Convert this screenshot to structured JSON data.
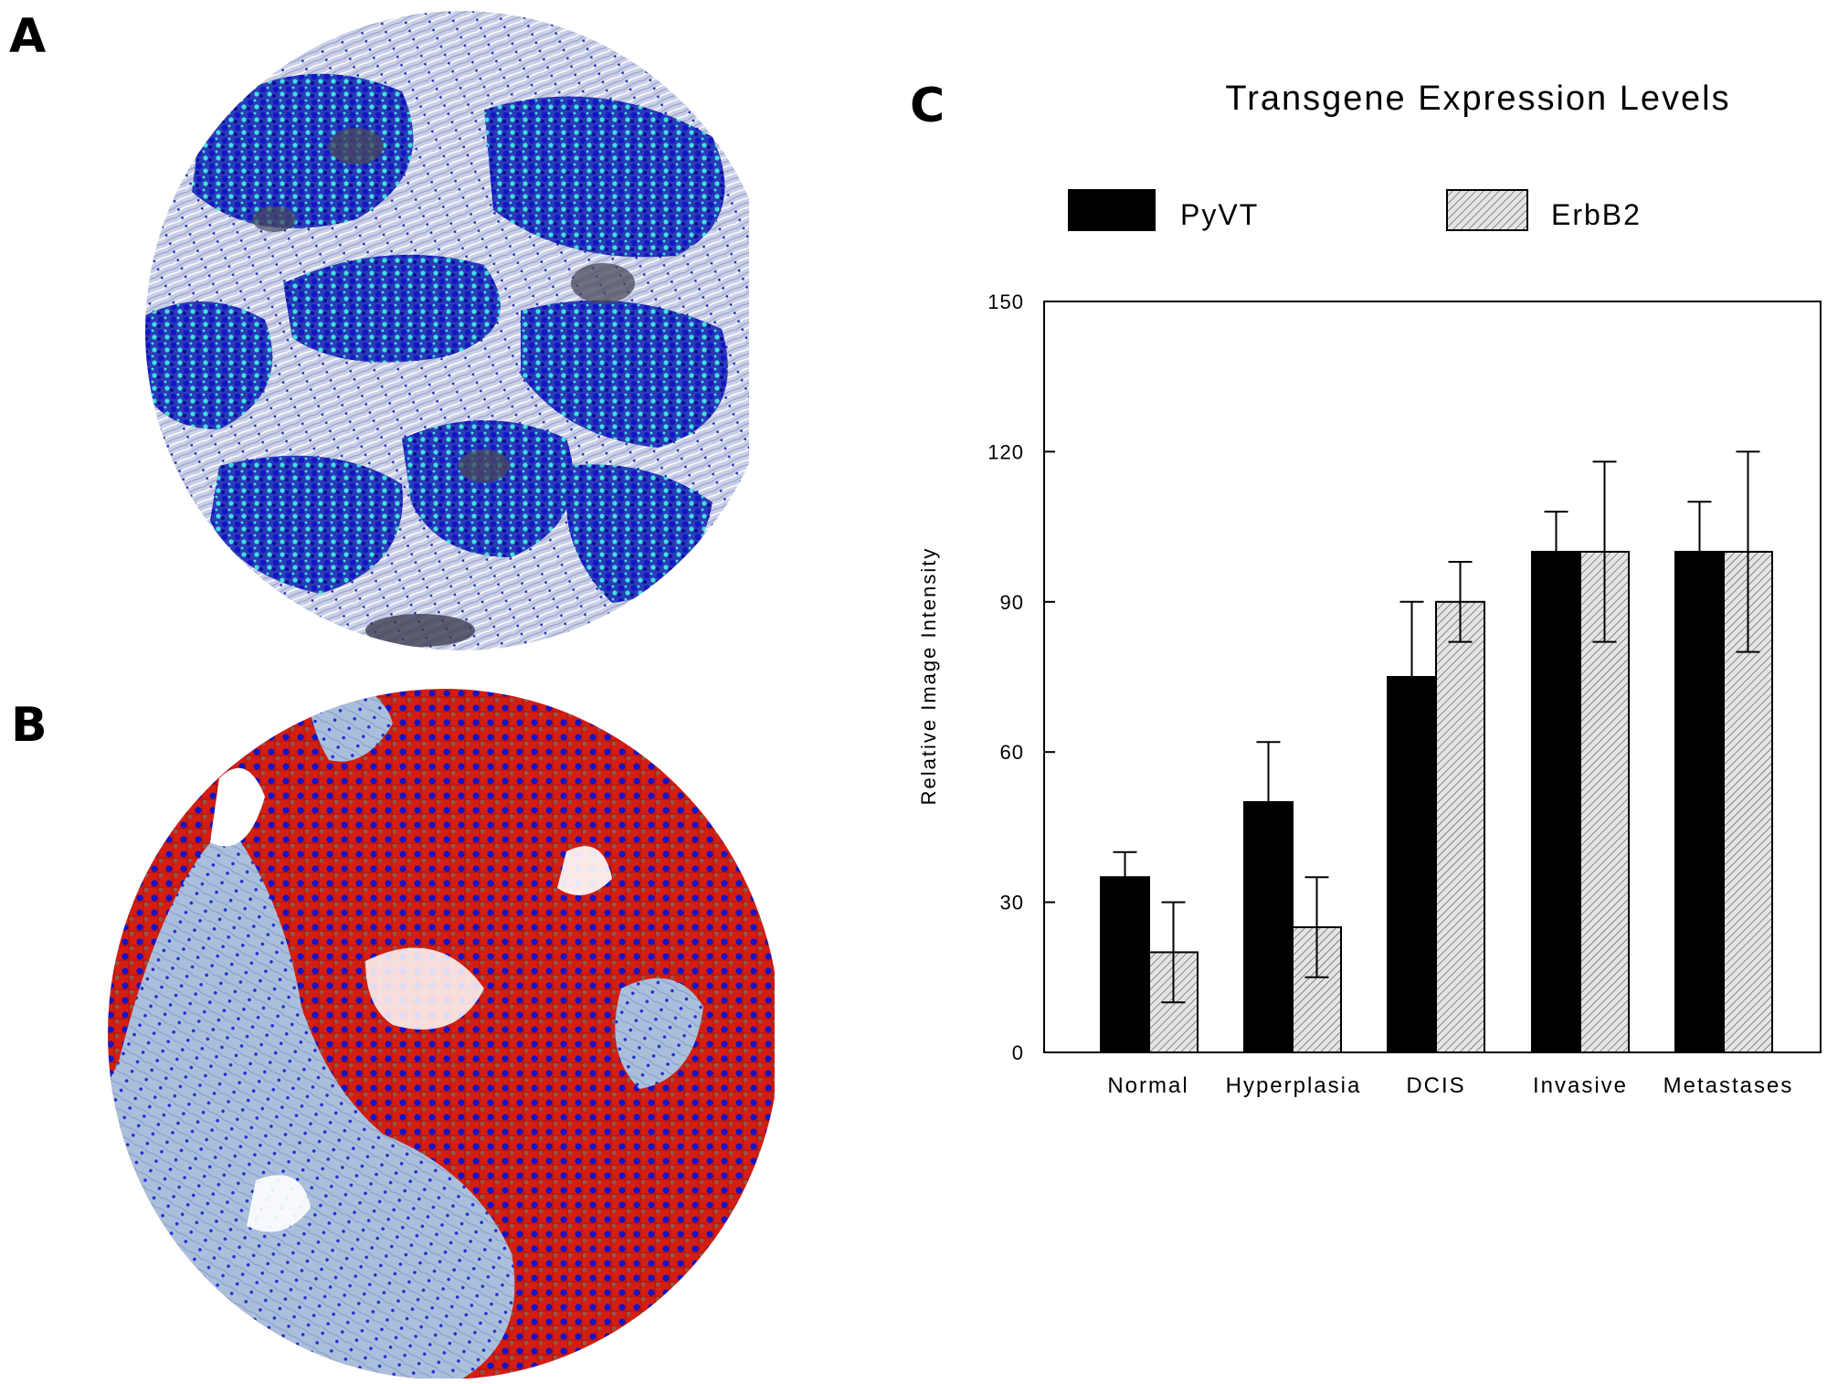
{
  "panels": {
    "a_label": "A",
    "b_label": "B",
    "c_label": "C"
  },
  "colors": {
    "pyvt": "#000000",
    "erbb2_fill": "#d9d9d9",
    "stroma": "#c7cde3",
    "nuclei": "#1414c8",
    "cyan_stain": "#3fe0e0",
    "red_stain": "#d41e12",
    "b_stroma": "#a9bfdc"
  },
  "chart_data": {
    "type": "bar",
    "title": "Transgene  Expression  Levels",
    "xlabel": "",
    "ylabel": "Relative Image Intensity",
    "ylim": [
      0,
      150
    ],
    "yticks": [
      "0",
      "30",
      "60",
      "90",
      "120",
      "150"
    ],
    "ytick_values": [
      0,
      30,
      60,
      90,
      120,
      150
    ],
    "categories": [
      "Normal",
      "Hyperplasia",
      "DCIS",
      "Invasive",
      "Metastases"
    ],
    "series": [
      {
        "name": "PyVT",
        "pattern": "solid",
        "values": [
          35,
          50,
          75,
          100,
          100
        ],
        "errors": [
          5,
          12,
          15,
          8,
          10
        ]
      },
      {
        "name": "ErbB2",
        "pattern": "hatched",
        "values": [
          20,
          25,
          90,
          100,
          100
        ],
        "errors": [
          10,
          10,
          8,
          18,
          20
        ]
      }
    ],
    "legend_position": "top",
    "grid": false
  }
}
